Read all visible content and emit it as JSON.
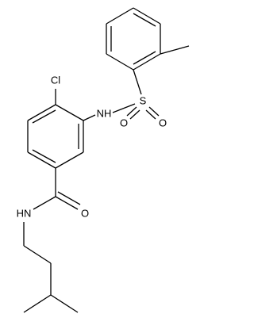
{
  "labels": {
    "chlorine": "Cl",
    "sulfonamide_nh": "NH",
    "sulfur": "S",
    "sulfonyl_o_left": "O",
    "sulfonyl_o_right": "O",
    "carbonyl_o": "O",
    "amide_nh": "HN"
  }
}
